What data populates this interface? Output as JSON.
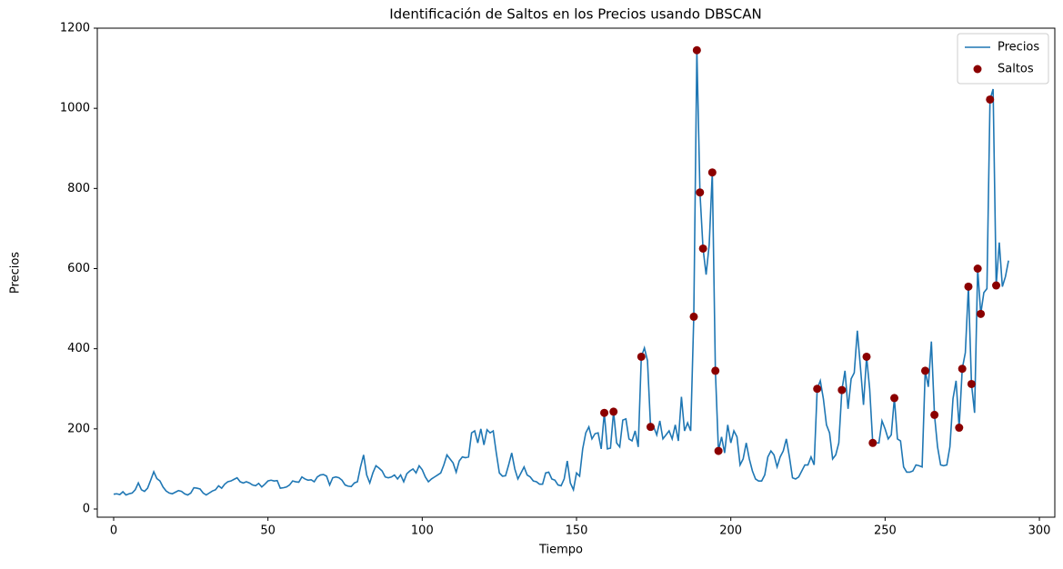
{
  "chart_data": {
    "type": "line",
    "title": "Identificación de Saltos en los Precios usando DBSCAN",
    "x_label": "Tiempo",
    "y_label": "Precios",
    "xlim": [
      -5.3,
      305
    ],
    "ylim": [
      -20.4,
      1200
    ],
    "xticks": [
      0,
      50,
      100,
      150,
      200,
      250,
      300
    ],
    "yticks": [
      0,
      200,
      400,
      600,
      800,
      1000,
      1200
    ],
    "legend": "upper right",
    "series": [
      {
        "name": "Precios",
        "color": "#1f77b4",
        "x": [
          0,
          1,
          2,
          3,
          4,
          5,
          6,
          7,
          8,
          9,
          10,
          11,
          12,
          13,
          14,
          15,
          16,
          17,
          18,
          19,
          20,
          21,
          22,
          23,
          24,
          25,
          26,
          27,
          28,
          29,
          30,
          31,
          32,
          33,
          34,
          35,
          36,
          37,
          38,
          39,
          40,
          41,
          42,
          43,
          44,
          45,
          46,
          47,
          48,
          49,
          50,
          51,
          52,
          53,
          54,
          55,
          56,
          57,
          58,
          59,
          60,
          61,
          62,
          63,
          64,
          65,
          66,
          67,
          68,
          69,
          70,
          71,
          72,
          73,
          74,
          75,
          76,
          77,
          78,
          79,
          80,
          81,
          82,
          83,
          84,
          85,
          86,
          87,
          88,
          89,
          90,
          91,
          92,
          93,
          94,
          95,
          96,
          97,
          98,
          99,
          100,
          101,
          102,
          103,
          104,
          105,
          106,
          107,
          108,
          109,
          110,
          111,
          112,
          113,
          114,
          115,
          116,
          117,
          118,
          119,
          120,
          121,
          122,
          123,
          124,
          125,
          126,
          127,
          128,
          129,
          130,
          131,
          132,
          133,
          134,
          135,
          136,
          137,
          138,
          139,
          140,
          141,
          142,
          143,
          144,
          145,
          146,
          147,
          148,
          149,
          150,
          151,
          152,
          153,
          154,
          155,
          156,
          157,
          158,
          159,
          160,
          161,
          162,
          163,
          164,
          165,
          166,
          167,
          168,
          169,
          170,
          171,
          172,
          173,
          174,
          175,
          176,
          177,
          178,
          179,
          180,
          181,
          182,
          183,
          184,
          185,
          186,
          187,
          188,
          189,
          190,
          191,
          192,
          193,
          194,
          195,
          196,
          197,
          198,
          199,
          200,
          201,
          202,
          203,
          204,
          205,
          206,
          207,
          208,
          209,
          210,
          211,
          212,
          213,
          214,
          215,
          216,
          217,
          218,
          219,
          220,
          221,
          222,
          223,
          224,
          225,
          226,
          227,
          228,
          229,
          230,
          231,
          232,
          233,
          234,
          235,
          236,
          237,
          238,
          239,
          240,
          241,
          242,
          243,
          244,
          245,
          246,
          247,
          248,
          249,
          250,
          251,
          252,
          253,
          254,
          255,
          256,
          257,
          258,
          259,
          260,
          261,
          262,
          263,
          264,
          265,
          266,
          267,
          268,
          269,
          270,
          271,
          272,
          273,
          274,
          275,
          276,
          277,
          278,
          279,
          280,
          281,
          282,
          283,
          284,
          285,
          286,
          287,
          288,
          289,
          290
        ],
        "values": [
          37,
          38,
          36,
          43,
          35,
          38,
          40,
          48,
          65,
          48,
          44,
          52,
          72,
          93,
          76,
          70,
          55,
          45,
          40,
          38,
          42,
          46,
          44,
          38,
          35,
          40,
          53,
          52,
          50,
          40,
          35,
          40,
          45,
          48,
          58,
          52,
          62,
          68,
          70,
          74,
          78,
          68,
          65,
          68,
          65,
          60,
          58,
          64,
          55,
          62,
          70,
          72,
          70,
          71,
          52,
          53,
          55,
          60,
          70,
          68,
          67,
          80,
          75,
          72,
          73,
          68,
          80,
          85,
          86,
          82,
          60,
          78,
          80,
          78,
          72,
          60,
          57,
          56,
          65,
          68,
          105,
          135,
          85,
          65,
          90,
          108,
          102,
          95,
          80,
          78,
          80,
          85,
          75,
          85,
          68,
          88,
          95,
          100,
          90,
          108,
          98,
          80,
          68,
          75,
          80,
          85,
          90,
          110,
          135,
          125,
          115,
          92,
          120,
          130,
          128,
          130,
          190,
          195,
          165,
          200,
          160,
          198,
          190,
          195,
          140,
          90,
          82,
          83,
          110,
          140,
          100,
          75,
          90,
          105,
          85,
          80,
          70,
          68,
          62,
          62,
          90,
          92,
          75,
          72,
          60,
          58,
          75,
          120,
          65,
          48,
          90,
          82,
          150,
          190,
          205,
          175,
          188,
          190,
          150,
          240,
          150,
          152,
          243,
          165,
          155,
          222,
          225,
          175,
          170,
          195,
          155,
          380,
          402,
          370,
          205,
          205,
          185,
          220,
          175,
          185,
          195,
          175,
          210,
          170,
          280,
          195,
          215,
          195,
          480,
          1145,
          790,
          650,
          585,
          660,
          840,
          345,
          145,
          180,
          140,
          210,
          165,
          195,
          180,
          110,
          125,
          165,
          125,
          95,
          75,
          70,
          70,
          85,
          130,
          145,
          135,
          105,
          130,
          145,
          175,
          130,
          78,
          75,
          80,
          95,
          110,
          110,
          130,
          110,
          300,
          320,
          275,
          210,
          190,
          125,
          135,
          165,
          297,
          345,
          250,
          325,
          340,
          445,
          355,
          260,
          380,
          300,
          165,
          165,
          165,
          220,
          200,
          175,
          185,
          277,
          175,
          170,
          105,
          92,
          92,
          95,
          110,
          108,
          105,
          345,
          305,
          418,
          235,
          155,
          110,
          108,
          110,
          155,
          275,
          320,
          203,
          350,
          390,
          555,
          312,
          240,
          600,
          487,
          540,
          550,
          1022,
          1048,
          558,
          665,
          555,
          580,
          620
        ]
      },
      {
        "name": "Saltos",
        "type": "scatter",
        "color": "#8b0000",
        "x": [
          159,
          162,
          171,
          174,
          188,
          189,
          190,
          191,
          194,
          195,
          196,
          228,
          236,
          244,
          246,
          253,
          263,
          266,
          274,
          275,
          277,
          278,
          280,
          281,
          284,
          286
        ],
        "values": [
          240,
          243,
          380,
          205,
          480,
          1145,
          790,
          650,
          840,
          345,
          145,
          300,
          297,
          380,
          165,
          277,
          345,
          235,
          203,
          350,
          555,
          312,
          600,
          487,
          1022,
          558
        ]
      }
    ]
  }
}
